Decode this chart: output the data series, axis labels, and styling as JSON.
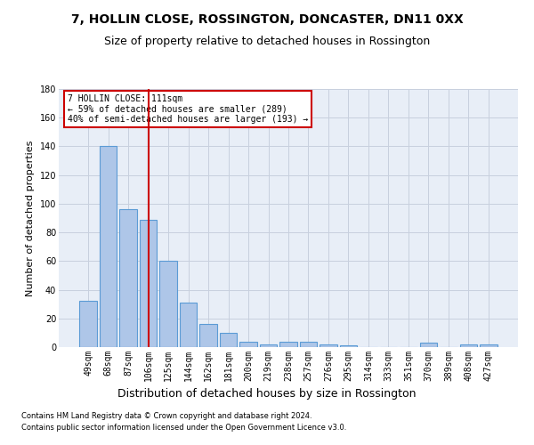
{
  "title": "7, HOLLIN CLOSE, ROSSINGTON, DONCASTER, DN11 0XX",
  "subtitle": "Size of property relative to detached houses in Rossington",
  "xlabel": "Distribution of detached houses by size in Rossington",
  "ylabel": "Number of detached properties",
  "categories": [
    "49sqm",
    "68sqm",
    "87sqm",
    "106sqm",
    "125sqm",
    "144sqm",
    "162sqm",
    "181sqm",
    "200sqm",
    "219sqm",
    "238sqm",
    "257sqm",
    "276sqm",
    "295sqm",
    "314sqm",
    "333sqm",
    "351sqm",
    "370sqm",
    "389sqm",
    "408sqm",
    "427sqm"
  ],
  "values": [
    32,
    140,
    96,
    89,
    60,
    31,
    16,
    10,
    4,
    2,
    4,
    4,
    2,
    1,
    0,
    0,
    0,
    3,
    0,
    2,
    2
  ],
  "bar_color": "#aec6e8",
  "bar_edge_color": "#5b9bd5",
  "vline_x_index": 3,
  "vline_color": "#cc0000",
  "annotation_box_text": "7 HOLLIN CLOSE: 111sqm\n← 59% of detached houses are smaller (289)\n40% of semi-detached houses are larger (193) →",
  "annotation_box_color": "#cc0000",
  "ylim": [
    0,
    180
  ],
  "yticks": [
    0,
    20,
    40,
    60,
    80,
    100,
    120,
    140,
    160,
    180
  ],
  "background_color": "#e8eef7",
  "grid_color": "#c8d0de",
  "title_fontsize": 10,
  "subtitle_fontsize": 9,
  "ylabel_fontsize": 8,
  "xlabel_fontsize": 9,
  "tick_fontsize": 7,
  "footer_line1": "Contains HM Land Registry data © Crown copyright and database right 2024.",
  "footer_line2": "Contains public sector information licensed under the Open Government Licence v3.0."
}
